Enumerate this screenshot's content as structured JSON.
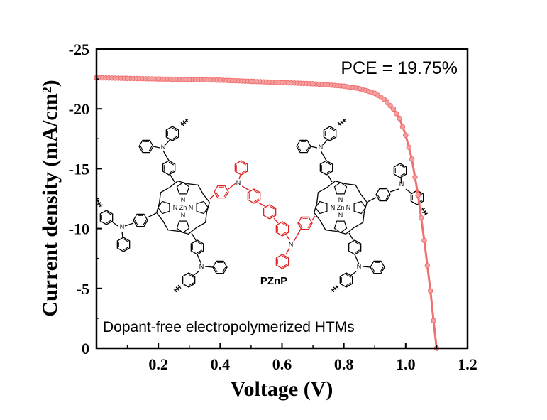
{
  "chart_data": {
    "type": "line",
    "xlabel": "Voltage (V)",
    "ylabel": "Current density (mA/cm²)",
    "xlim": [
      0.0,
      1.2
    ],
    "ylim": [
      0,
      -25
    ],
    "xticks": [
      "0.2",
      "0.4",
      "0.6",
      "0.8",
      "1.0",
      "1.2"
    ],
    "yticks": [
      "0",
      "-5",
      "-10",
      "-15",
      "-20",
      "-25"
    ],
    "grid": false,
    "color": "#f07070",
    "series": [
      {
        "x": [
          0.0,
          0.1,
          0.2,
          0.3,
          0.4,
          0.5,
          0.6,
          0.7,
          0.8,
          0.85,
          0.9,
          0.93,
          0.96,
          0.98,
          1.0,
          1.02,
          1.04,
          1.06,
          1.08,
          1.09,
          1.1
        ],
        "values": [
          -22.6,
          -22.55,
          -22.5,
          -22.45,
          -22.4,
          -22.3,
          -22.2,
          -22.1,
          -21.9,
          -21.7,
          -21.3,
          -20.8,
          -20.0,
          -19.2,
          -17.8,
          -15.8,
          -12.8,
          -9.0,
          -4.8,
          -2.3,
          0.0
        ]
      }
    ],
    "annotations": {
      "pce": "PCE = 19.75%",
      "htm": "Dopant-free electropolymerized HTMs",
      "molecule": "PZnP"
    }
  },
  "molecule_atoms": {
    "n": "N",
    "zn": "Zn"
  },
  "colors": {
    "curve": "#f07070",
    "marker_fill": "#f4a0a0",
    "bridge": "#e02020",
    "structure": "#000000"
  }
}
